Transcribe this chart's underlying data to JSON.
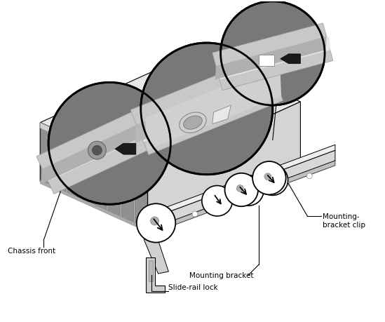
{
  "background_color": "#ffffff",
  "fig_width": 5.49,
  "fig_height": 4.6,
  "dpi": 100,
  "labels": {
    "chassis_front": "Chassis front",
    "slide_rail_lock": "Slide-rail lock",
    "mounting_bracket": "Mounting bracket",
    "mounting_bracket_clip": "Mounting-\nbracket clip"
  },
  "label_fontsize": 7.5,
  "lc": "#000000",
  "gray_top": "#e0e0e0",
  "gray_front": "#aaaaaa",
  "gray_right": "#c8c8c8",
  "gray_rail": "#d4d4d4",
  "gray_circle_bg": "#888888",
  "gray_bar": "#c0c0c0"
}
